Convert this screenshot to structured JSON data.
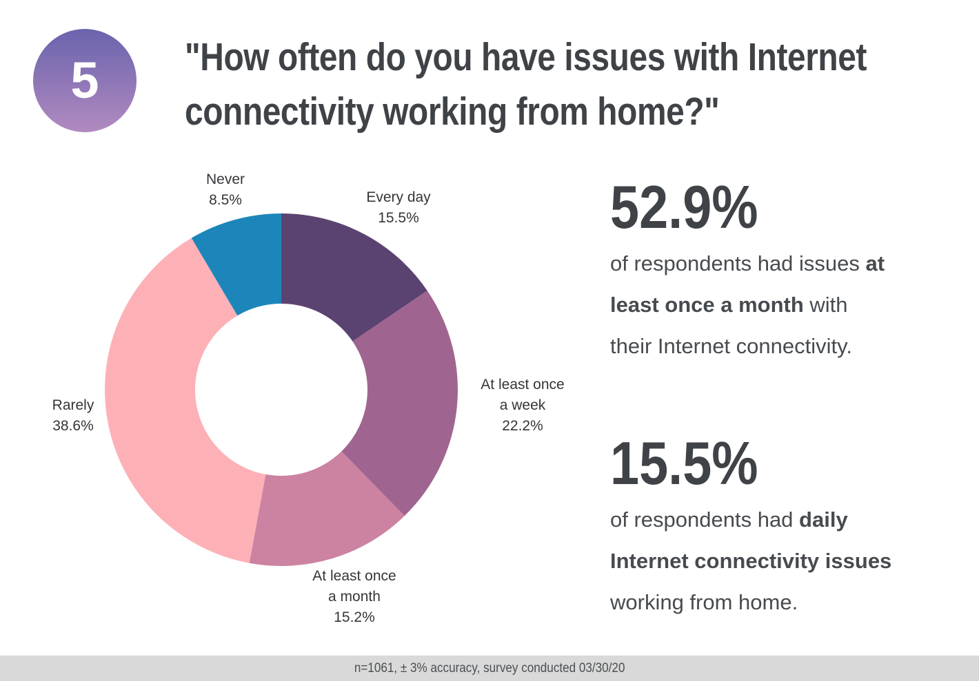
{
  "badge": {
    "number": "5",
    "gradient_top": "#6a63ad",
    "gradient_bottom": "#b18ac0"
  },
  "title": {
    "line1": "\"How often do you have issues with Internet",
    "line2": "connectivity working from home?\"",
    "full": "\"How often do you have issues with Internet connectivity working from home?\"",
    "color": "#3f4347"
  },
  "chart_data": {
    "type": "pie",
    "variant": "donut",
    "title": "\"How often do you have issues with Internet connectivity working from home?\"",
    "start_angle_deg": 0,
    "direction": "clockwise",
    "inner_radius_ratio": 0.49,
    "categories": [
      "Every day",
      "At least once a week",
      "At least once a month",
      "Rarely",
      "Never"
    ],
    "values": [
      15.5,
      22.2,
      15.2,
      38.6,
      8.5
    ],
    "segments": [
      {
        "label": "Every day",
        "value": 15.5,
        "color": "#5b4371"
      },
      {
        "label": "At least once a week",
        "value": 22.2,
        "color": "#9f6590"
      },
      {
        "label": "At least once a month",
        "value": 15.2,
        "color": "#cc82a1"
      },
      {
        "label": "Rarely",
        "value": 38.6,
        "color": "#fdb1b7"
      },
      {
        "label": "Never",
        "value": 8.5,
        "color": "#1c86bb"
      }
    ],
    "labels": [
      {
        "id": "every-day",
        "lines": [
          "Every day",
          "15.5%"
        ]
      },
      {
        "id": "week",
        "lines": [
          "At least once",
          "a week",
          "22.2%"
        ]
      },
      {
        "id": "month",
        "lines": [
          "At least once",
          "a month",
          "15.2%"
        ]
      },
      {
        "id": "rarely",
        "lines": [
          "Rarely",
          "38.6%"
        ]
      },
      {
        "id": "never",
        "lines": [
          "Never",
          "8.5%"
        ]
      }
    ]
  },
  "stats": [
    {
      "number": "52.9%",
      "text": "of respondents had issues at least once a month with their Internet connectivity.",
      "lines": [
        [
          {
            "text": "of respondents had issues ",
            "bold": false
          },
          {
            "text": "at",
            "bold": true
          }
        ],
        [
          {
            "text": "least once a month",
            "bold": true
          },
          {
            "text": " with",
            "bold": false
          }
        ],
        [
          {
            "text": "their Internet connectivity.",
            "bold": false
          }
        ]
      ]
    },
    {
      "number": "15.5%",
      "text": "of respondents had daily Internet connectivity issues working from home.",
      "lines": [
        [
          {
            "text": "of respondents had ",
            "bold": false
          },
          {
            "text": "daily",
            "bold": true
          }
        ],
        [
          {
            "text": "Internet connectivity issues",
            "bold": true
          }
        ],
        [
          {
            "text": "working from home.",
            "bold": false
          }
        ]
      ]
    }
  ],
  "footer": {
    "text": "n=1061, ± 3% accuracy, survey conducted 03/30/20",
    "background": "#d9d9d9"
  }
}
